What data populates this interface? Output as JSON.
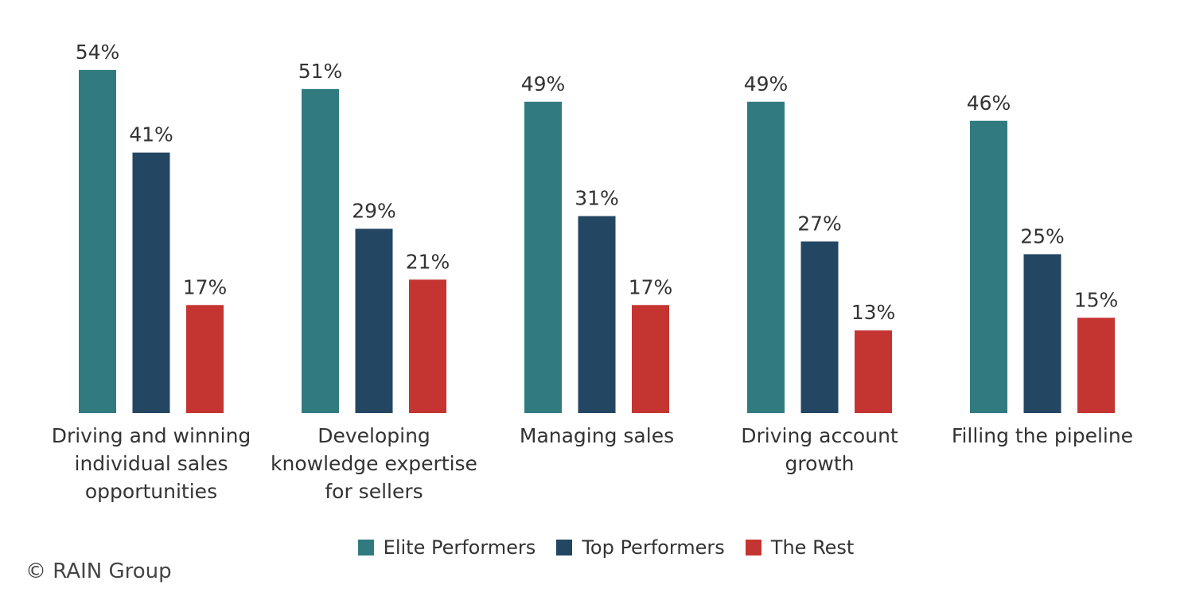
{
  "chart_data": {
    "type": "bar",
    "categories": [
      "Driving and winning individual sales opportunities",
      "Developing knowledge expertise for sellers",
      "Managing sales",
      "Driving account growth",
      "Filling the pipeline"
    ],
    "series": [
      {
        "name": "Elite Performers",
        "color": "#317b80",
        "values": [
          54,
          51,
          49,
          49,
          46
        ],
        "value_labels": [
          "54%",
          "51%",
          "49%",
          "49%",
          "46%"
        ]
      },
      {
        "name": "Top Performers",
        "color": "#234663",
        "values": [
          41,
          29,
          31,
          27,
          25
        ],
        "value_labels": [
          "41%",
          "29%",
          "31%",
          "27%",
          "25%"
        ]
      },
      {
        "name": "The Rest",
        "color": "#c43531",
        "values": [
          17,
          21,
          17,
          13,
          15
        ],
        "value_labels": [
          "17%",
          "21%",
          "17%",
          "13%",
          "15%"
        ]
      }
    ],
    "ylim": [
      0,
      60
    ],
    "legend": "bottom",
    "source": "© RAIN Group"
  }
}
